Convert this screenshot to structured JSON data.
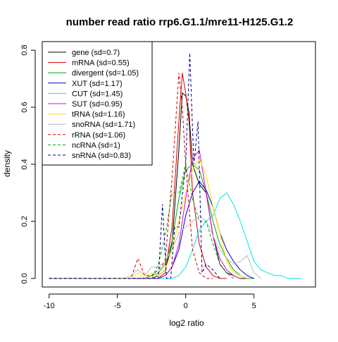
{
  "chart_data": {
    "type": "line",
    "title": "number read ratio rrp6.G1.1/mre11-H125.G1.2",
    "xlabel": "log2 ratio",
    "ylabel": "density",
    "xlim": [
      -10.5,
      9.5
    ],
    "ylim": [
      -0.03,
      0.83
    ],
    "xticks": [
      -10,
      -5,
      0,
      5
    ],
    "yticks": [
      0.0,
      0.2,
      0.4,
      0.6,
      0.8
    ],
    "xtick_labels": [
      "-10",
      "-5",
      "0",
      "5"
    ],
    "ytick_labels": [
      "0.0",
      "0.2",
      "0.4",
      "0.6",
      "0.8"
    ],
    "grid": false,
    "legend_position": "top-left",
    "series": [
      {
        "name": "gene (sd=0.7)",
        "color": "#000000",
        "dash": "solid",
        "x": [
          -10,
          -2.5,
          -2,
          -1.5,
          -1,
          -0.5,
          -0.25,
          0,
          0.25,
          0.5,
          1,
          1.5,
          2,
          2.5,
          3,
          3.5,
          4,
          4.5
        ],
        "y": [
          0,
          0,
          0.01,
          0.03,
          0.12,
          0.45,
          0.65,
          0.64,
          0.58,
          0.4,
          0.33,
          0.3,
          0.15,
          0.05,
          0.02,
          0.01,
          0,
          0
        ]
      },
      {
        "name": "mRNA (sd=0.55)",
        "color": "#cc0000",
        "dash": "solid",
        "x": [
          -10,
          -2,
          -1.5,
          -1,
          -0.5,
          -0.25,
          0,
          0.25,
          0.5,
          1,
          1.5,
          2,
          2.5,
          3
        ],
        "y": [
          0,
          0,
          0.02,
          0.18,
          0.55,
          0.72,
          0.65,
          0.55,
          0.3,
          0.12,
          0.04,
          0.01,
          0,
          0
        ]
      },
      {
        "name": "divergent (sd=1.05)",
        "color": "#00aa00",
        "dash": "solid",
        "x": [
          -10,
          -3,
          -2,
          -1.5,
          -1,
          -0.5,
          0,
          0.5,
          1,
          1.5,
          2,
          2.5,
          3,
          3.5,
          4,
          4.5,
          5
        ],
        "y": [
          0,
          0,
          0.02,
          0.05,
          0.13,
          0.28,
          0.38,
          0.4,
          0.38,
          0.3,
          0.2,
          0.12,
          0.07,
          0.03,
          0.01,
          0,
          0
        ]
      },
      {
        "name": "XUT (sd=1.17)",
        "color": "#0000cc",
        "dash": "solid",
        "x": [
          -10,
          -2,
          -1.5,
          -1,
          -0.5,
          0,
          0.5,
          1,
          1.5,
          2,
          2.5,
          3,
          3.5,
          4,
          4.5,
          5
        ],
        "y": [
          0,
          0,
          0.01,
          0.04,
          0.1,
          0.22,
          0.3,
          0.34,
          0.31,
          0.25,
          0.16,
          0.1,
          0.06,
          0.03,
          0.01,
          0
        ]
      },
      {
        "name": "CUT (sd=1.45)",
        "color": "#00e5e5",
        "dash": "solid",
        "x": [
          -10,
          -1,
          -0.5,
          0,
          0.5,
          1,
          1.5,
          2,
          2.5,
          3,
          3.5,
          4,
          4.5,
          5,
          5.5,
          6,
          6.5,
          7,
          7.5,
          8,
          8.5
        ],
        "y": [
          0,
          0,
          0.01,
          0.04,
          0.1,
          0.17,
          0.2,
          0.22,
          0.28,
          0.3,
          0.26,
          0.2,
          0.13,
          0.06,
          0.03,
          0.02,
          0.01,
          0.01,
          0,
          0,
          0
        ]
      },
      {
        "name": "SUT (sd=0.95)",
        "color": "#dd00dd",
        "dash": "solid",
        "x": [
          -10,
          -2,
          -1.5,
          -1,
          -0.5,
          0,
          0.5,
          1,
          1.5,
          2,
          2.5,
          3,
          3.5,
          4
        ],
        "y": [
          0,
          0,
          0.01,
          0.04,
          0.12,
          0.28,
          0.42,
          0.45,
          0.3,
          0.15,
          0.07,
          0.03,
          0.01,
          0
        ]
      },
      {
        "name": "tRNA (sd=1.16)",
        "color": "#ffdd00",
        "dash": "solid",
        "x": [
          -10,
          -4,
          -3.5,
          -3,
          -2.5,
          -2,
          -1.5,
          -1,
          -0.5,
          0,
          0.5,
          1,
          1.5,
          2,
          2.5,
          3,
          3.5,
          4,
          4.5
        ],
        "y": [
          0,
          0,
          0.02,
          0,
          0.02,
          0.01,
          0.03,
          0.1,
          0.2,
          0.3,
          0.38,
          0.42,
          0.36,
          0.25,
          0.16,
          0.06,
          0.02,
          0.01,
          0
        ]
      },
      {
        "name": "snoRNA (sd=1.71)",
        "color": "#bbbbbb",
        "dash": "solid",
        "x": [
          -10,
          -4.5,
          -4,
          -3.5,
          -3,
          -2.5,
          -2,
          -1.5,
          -1,
          -0.5,
          0,
          0.5,
          1,
          1.5,
          2,
          2.5,
          3,
          3.5,
          4,
          4.5,
          5,
          5.5
        ],
        "y": [
          0,
          0,
          0.01,
          0.03,
          0.01,
          0.04,
          0.04,
          0.06,
          0.1,
          0.16,
          0.18,
          0.2,
          0.22,
          0.2,
          0.15,
          0.1,
          0.07,
          0.05,
          0.06,
          0.08,
          0.02,
          0
        ]
      },
      {
        "name": "rRNA (sd=1.06)",
        "color": "#cc0000",
        "dash": "dashed",
        "x": [
          -10,
          -4,
          -3.5,
          -3,
          -2.5,
          -2,
          -1.5,
          -1,
          -0.5,
          -0.25,
          0,
          0.5,
          1,
          1.5,
          2
        ],
        "y": [
          0,
          0,
          0.07,
          0.01,
          0.01,
          0.03,
          0.06,
          0.35,
          0.72,
          0.6,
          0.4,
          0.1,
          0.02,
          0,
          0
        ]
      },
      {
        "name": "ncRNA (sd=1)",
        "color": "#00aa00",
        "dash": "dashed",
        "x": [
          -10,
          -2.5,
          -2,
          -1.5,
          -1,
          -0.5,
          0,
          0.5,
          1,
          1.5,
          2,
          2.5,
          3,
          3.5
        ],
        "y": [
          0,
          0,
          0.05,
          0.15,
          0.3,
          0.3,
          0.4,
          0.28,
          0.2,
          0.2,
          0.12,
          0.05,
          0.02,
          0
        ]
      },
      {
        "name": "snRNA (sd=0.83)",
        "color": "#00008b",
        "dash": "dashed",
        "x": [
          -10,
          -2,
          -1.7,
          -1.4,
          -1.1,
          -0.8,
          -0.5,
          0,
          0.3,
          0.6,
          0.9,
          1.2,
          1.5,
          2,
          2.5
        ],
        "y": [
          0,
          0,
          0.26,
          0,
          0,
          0.18,
          0.18,
          0.4,
          0.79,
          0.4,
          0.55,
          0.02,
          0.05,
          0.03,
          0
        ]
      }
    ]
  }
}
